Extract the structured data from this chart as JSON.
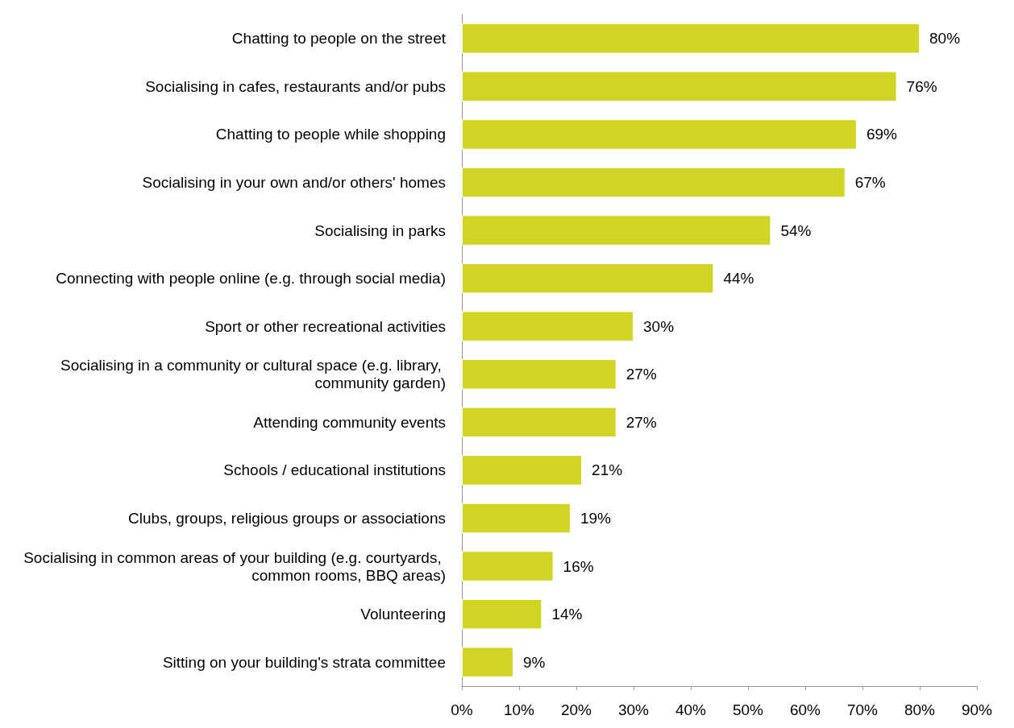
{
  "chart_data": {
    "type": "bar",
    "orientation": "horizontal",
    "categories": [
      "Chatting to people on the street",
      "Socialising in cafes, restaurants and/or pubs",
      "Chatting to people while shopping",
      "Socialising in your own and/or others' homes",
      "Socialising in parks",
      "Connecting with people online (e.g. through social media)",
      "Sport or other recreational activities",
      "Socialising in a community or cultural space (e.g. library, community garden)",
      "Attending community events",
      "Schools / educational institutions",
      "Clubs, groups, religious groups or associations",
      "Socialising in common areas of your building (e.g. courtyards, common rooms, BBQ areas)",
      "Volunteering",
      "Sitting on your building's strata committee"
    ],
    "values": [
      80,
      76,
      69,
      67,
      54,
      44,
      30,
      27,
      27,
      21,
      19,
      16,
      14,
      9
    ],
    "value_labels": [
      "80%",
      "76%",
      "69%",
      "67%",
      "54%",
      "44%",
      "30%",
      "27%",
      "27%",
      "21%",
      "19%",
      "16%",
      "14%",
      "9%"
    ],
    "color": "#d0d523",
    "xlim": [
      0,
      90
    ],
    "xticks": [
      {
        "value": 0,
        "label": "0%"
      },
      {
        "value": 10,
        "label": "10%"
      },
      {
        "value": 20,
        "label": "20%"
      },
      {
        "value": 30,
        "label": "30%"
      },
      {
        "value": 40,
        "label": "40%"
      },
      {
        "value": 50,
        "label": "50%"
      },
      {
        "value": 60,
        "label": "60%"
      },
      {
        "value": 70,
        "label": "70%"
      },
      {
        "value": 80,
        "label": "80%"
      },
      {
        "value": 90,
        "label": "90%"
      }
    ],
    "grid": false
  }
}
